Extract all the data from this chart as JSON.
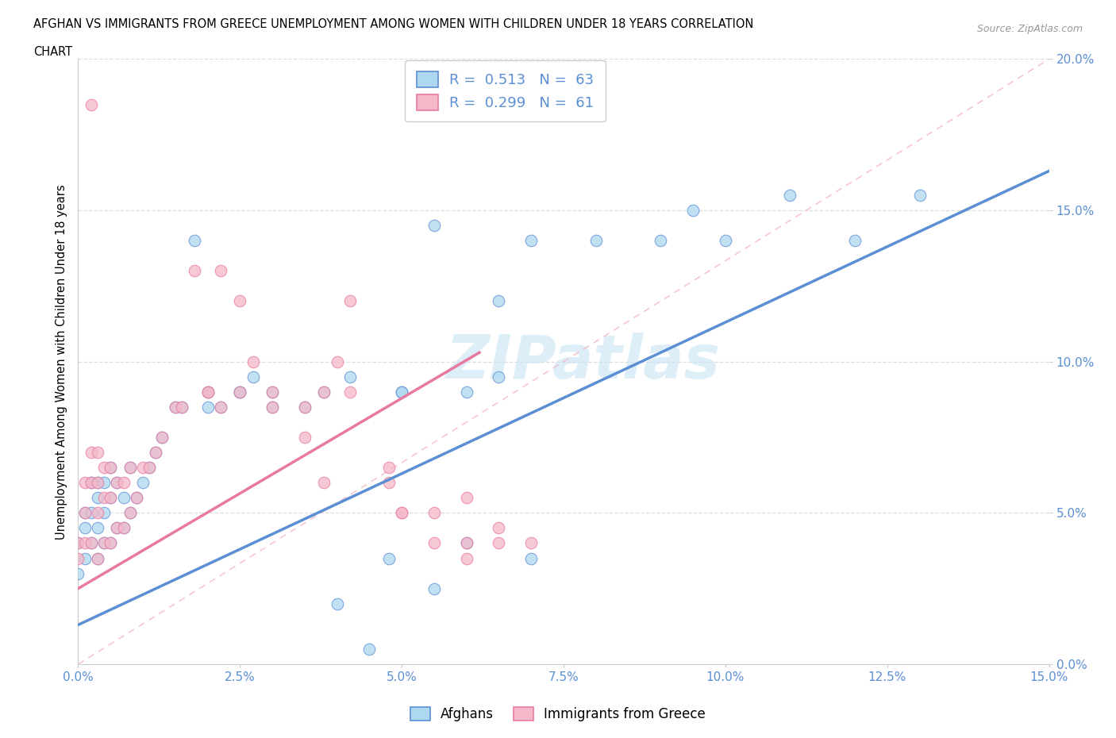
{
  "title_line1": "AFGHAN VS IMMIGRANTS FROM GREECE UNEMPLOYMENT AMONG WOMEN WITH CHILDREN UNDER 18 YEARS CORRELATION",
  "title_line2": "CHART",
  "source_text": "Source: ZipAtlas.com",
  "ylabel": "Unemployment Among Women with Children Under 18 years",
  "watermark": "ZIPatlas",
  "legend1_label": "Afghans",
  "legend2_label": "Immigrants from Greece",
  "R1": 0.513,
  "N1": 63,
  "R2": 0.299,
  "N2": 61,
  "color_blue": "#ADD8F0",
  "color_pink": "#F4B8C8",
  "line_blue": "#5B8FD4",
  "line_pink": "#E87A9F",
  "line_dash_color": "#F4B8C8",
  "xlim": [
    0.0,
    0.15
  ],
  "ylim": [
    0.0,
    0.2
  ],
  "xtick_vals": [
    0.0,
    0.025,
    0.05,
    0.075,
    0.1,
    0.125,
    0.15
  ],
  "ytick_vals": [
    0.0,
    0.05,
    0.1,
    0.15,
    0.2
  ],
  "blue_x": [
    0.0,
    0.0,
    0.001,
    0.001,
    0.001,
    0.002,
    0.002,
    0.002,
    0.003,
    0.003,
    0.003,
    0.003,
    0.004,
    0.004,
    0.004,
    0.005,
    0.005,
    0.005,
    0.006,
    0.006,
    0.007,
    0.007,
    0.008,
    0.008,
    0.009,
    0.01,
    0.011,
    0.012,
    0.013,
    0.015,
    0.016,
    0.018,
    0.02,
    0.022,
    0.025,
    0.027,
    0.03,
    0.035,
    0.038,
    0.042,
    0.048,
    0.05,
    0.055,
    0.06,
    0.065,
    0.07,
    0.02,
    0.025,
    0.03,
    0.04,
    0.045,
    0.05,
    0.055,
    0.065,
    0.07,
    0.08,
    0.09,
    0.095,
    0.1,
    0.11,
    0.12,
    0.13,
    0.06
  ],
  "blue_y": [
    0.03,
    0.04,
    0.035,
    0.045,
    0.05,
    0.04,
    0.05,
    0.06,
    0.035,
    0.045,
    0.055,
    0.06,
    0.04,
    0.05,
    0.06,
    0.04,
    0.055,
    0.065,
    0.045,
    0.06,
    0.045,
    0.055,
    0.05,
    0.065,
    0.055,
    0.06,
    0.065,
    0.07,
    0.075,
    0.085,
    0.085,
    0.14,
    0.085,
    0.085,
    0.09,
    0.095,
    0.09,
    0.085,
    0.09,
    0.095,
    0.035,
    0.09,
    0.025,
    0.04,
    0.095,
    0.035,
    0.09,
    0.09,
    0.085,
    0.02,
    0.005,
    0.09,
    0.145,
    0.12,
    0.14,
    0.14,
    0.14,
    0.15,
    0.14,
    0.155,
    0.14,
    0.155,
    0.09
  ],
  "pink_x": [
    0.0,
    0.0,
    0.001,
    0.001,
    0.001,
    0.002,
    0.002,
    0.002,
    0.003,
    0.003,
    0.003,
    0.003,
    0.004,
    0.004,
    0.004,
    0.005,
    0.005,
    0.005,
    0.006,
    0.006,
    0.007,
    0.007,
    0.008,
    0.008,
    0.009,
    0.01,
    0.011,
    0.012,
    0.013,
    0.015,
    0.016,
    0.018,
    0.02,
    0.022,
    0.025,
    0.027,
    0.03,
    0.035,
    0.038,
    0.042,
    0.048,
    0.05,
    0.055,
    0.06,
    0.065,
    0.07,
    0.002,
    0.02,
    0.022,
    0.025,
    0.03,
    0.035,
    0.038,
    0.04,
    0.042,
    0.048,
    0.05,
    0.055,
    0.06,
    0.06,
    0.065
  ],
  "pink_y": [
    0.035,
    0.04,
    0.04,
    0.05,
    0.06,
    0.04,
    0.06,
    0.07,
    0.035,
    0.05,
    0.06,
    0.07,
    0.04,
    0.055,
    0.065,
    0.04,
    0.055,
    0.065,
    0.045,
    0.06,
    0.045,
    0.06,
    0.05,
    0.065,
    0.055,
    0.065,
    0.065,
    0.07,
    0.075,
    0.085,
    0.085,
    0.13,
    0.09,
    0.085,
    0.09,
    0.1,
    0.09,
    0.085,
    0.09,
    0.09,
    0.06,
    0.05,
    0.04,
    0.04,
    0.045,
    0.04,
    0.185,
    0.09,
    0.13,
    0.12,
    0.085,
    0.075,
    0.06,
    0.1,
    0.12,
    0.065,
    0.05,
    0.05,
    0.035,
    0.055,
    0.04
  ],
  "blue_line_x": [
    0.0,
    0.15
  ],
  "blue_line_y": [
    0.013,
    0.163
  ],
  "pink_line_x": [
    0.0,
    0.062
  ],
  "pink_line_y": [
    0.025,
    0.103
  ]
}
